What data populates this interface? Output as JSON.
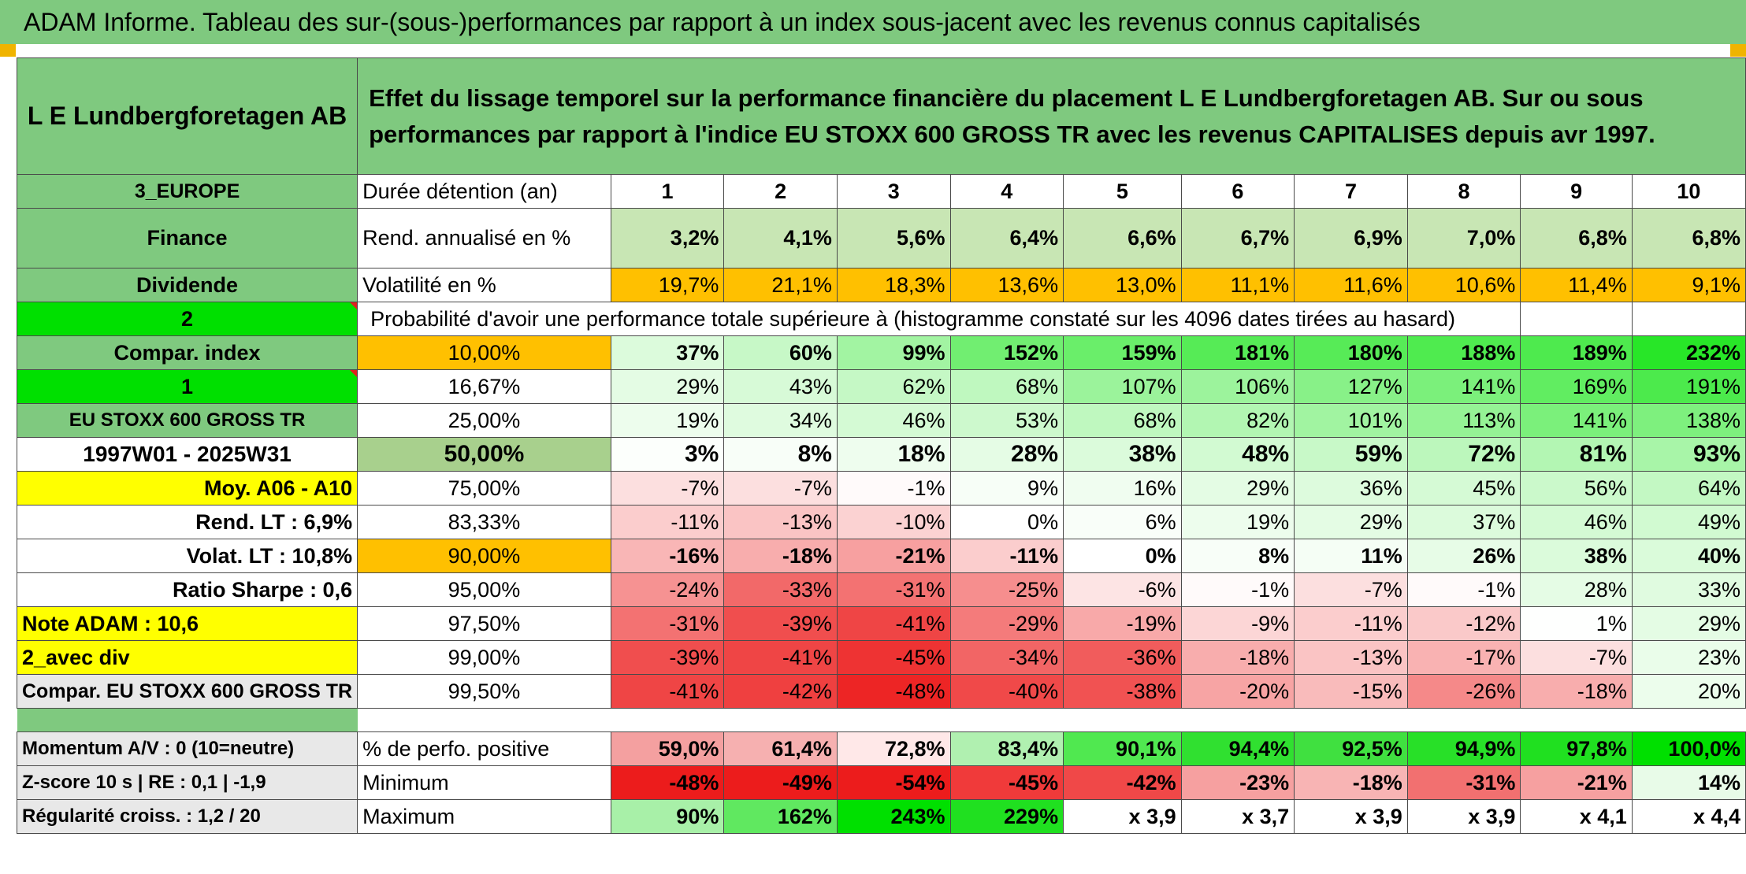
{
  "title": "ADAM Informe. Tableau des sur-(sous-)performances par rapport à un index sous-jacent avec les revenus connus capitalisés",
  "stock_name": "L E Lundbergforetagen AB",
  "header_text": "Effet du lissage temporel sur la performance financière du placement L E Lundbergforetagen AB. Sur ou sous performances par rapport à l'indice EU STOXX 600 GROSS TR avec les revenus CAPITALISES depuis avr 1997.",
  "region": "3_EUROPE",
  "sector": "Finance",
  "style": "Dividende",
  "durations_label": "Durée détention (an)",
  "durations": [
    "1",
    "2",
    "3",
    "4",
    "5",
    "6",
    "7",
    "8",
    "9",
    "10"
  ],
  "rend_label": "Rend. annualisé en %",
  "rend_values": [
    "3,2%",
    "4,1%",
    "5,6%",
    "6,4%",
    "6,6%",
    "6,7%",
    "6,9%",
    "7,0%",
    "6,8%",
    "6,8%"
  ],
  "vol_label": "Volatilité en %",
  "vol_values": [
    "19,7%",
    "21,1%",
    "18,3%",
    "13,6%",
    "13,0%",
    "11,1%",
    "11,6%",
    "10,6%",
    "11,4%",
    "9,1%"
  ],
  "prob_num": "2",
  "prob_text": "Probabilité d'avoir une performance totale supérieure à (histogramme constaté sur les 4096 dates tirées au hasard)",
  "rows": [
    {
      "left": "Compar. index",
      "pct": "10,00%",
      "vals": [
        "37%",
        "60%",
        "99%",
        "152%",
        "159%",
        "181%",
        "180%",
        "188%",
        "189%",
        "232%"
      ]
    },
    {
      "left": "1",
      "pct": "16,67%",
      "vals": [
        "29%",
        "43%",
        "62%",
        "68%",
        "107%",
        "106%",
        "127%",
        "141%",
        "169%",
        "191%"
      ]
    },
    {
      "left": "EU STOXX 600 GROSS TR",
      "pct": "25,00%",
      "vals": [
        "19%",
        "34%",
        "46%",
        "53%",
        "68%",
        "82%",
        "101%",
        "113%",
        "141%",
        "138%"
      ]
    },
    {
      "left": "1997W01 - 2025W31",
      "pct": "50,00%",
      "vals": [
        "3%",
        "8%",
        "18%",
        "28%",
        "38%",
        "48%",
        "59%",
        "72%",
        "81%",
        "93%"
      ]
    },
    {
      "left": "Moy. A06 - A10",
      "pct": "75,00%",
      "vals": [
        "-7%",
        "-7%",
        "-1%",
        "9%",
        "16%",
        "29%",
        "36%",
        "45%",
        "56%",
        "64%"
      ]
    },
    {
      "left": "Rend. LT :   6,9%",
      "pct": "83,33%",
      "vals": [
        "-11%",
        "-13%",
        "-10%",
        "0%",
        "6%",
        "19%",
        "29%",
        "37%",
        "46%",
        "49%"
      ]
    },
    {
      "left": "Volat. LT :   10,8%",
      "pct": "90,00%",
      "vals": [
        "-16%",
        "-18%",
        "-21%",
        "-11%",
        "0%",
        "8%",
        "11%",
        "26%",
        "38%",
        "40%"
      ]
    },
    {
      "left": "Ratio Sharpe :    0,6",
      "pct": "95,00%",
      "vals": [
        "-24%",
        "-33%",
        "-31%",
        "-25%",
        "-6%",
        "-1%",
        "-7%",
        "-1%",
        "28%",
        "33%"
      ]
    },
    {
      "left": "Note ADAM : 10,6",
      "pct": "97,50%",
      "vals": [
        "-31%",
        "-39%",
        "-41%",
        "-29%",
        "-19%",
        "-9%",
        "-11%",
        "-12%",
        "1%",
        "29%"
      ]
    },
    {
      "left": "2_avec div",
      "pct": "99,00%",
      "vals": [
        "-39%",
        "-41%",
        "-45%",
        "-34%",
        "-36%",
        "-18%",
        "-13%",
        "-17%",
        "-7%",
        "23%"
      ]
    },
    {
      "left": "Compar. EU STOXX 600 GROSS TR",
      "pct": "99,50%",
      "vals": [
        "-41%",
        "-42%",
        "-48%",
        "-40%",
        "-38%",
        "-20%",
        "-15%",
        "-26%",
        "-18%",
        "20%"
      ]
    }
  ],
  "footer": [
    {
      "left": "Momentum A/V : 0 (10=neutre)",
      "label": "% de perfo. positive",
      "vals": [
        "59,0%",
        "61,4%",
        "72,8%",
        "83,4%",
        "90,1%",
        "94,4%",
        "92,5%",
        "94,9%",
        "97,8%",
        "100,0%"
      ]
    },
    {
      "left": "Z-score 10 s | RE : 0,1 | -1,9",
      "label": "Minimum",
      "vals": [
        "-48%",
        "-49%",
        "-54%",
        "-45%",
        "-42%",
        "-23%",
        "-18%",
        "-31%",
        "-21%",
        "14%"
      ]
    },
    {
      "left": "Régularité croiss. : 1,2 / 20",
      "label": "Maximum",
      "vals": [
        "90%",
        "162%",
        "243%",
        "229%",
        "x 3,9",
        "x 3,7",
        "x 3,9",
        "x 3,9",
        "x 4,1",
        "x 4,4"
      ]
    }
  ],
  "colors": {
    "header_green": "#7fc97f",
    "bright_green": "#00e000",
    "orange": "#ffc000",
    "yellow": "#ffff00",
    "label_red": "#d42020"
  }
}
